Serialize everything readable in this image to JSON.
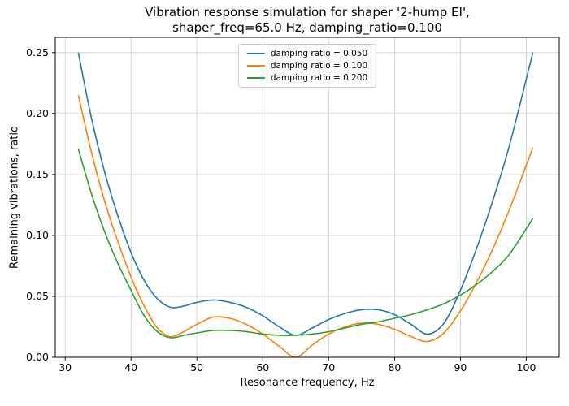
{
  "title": {
    "line1": "Vibration response simulation for shaper '2-hump EI',",
    "line2": "shaper_freq=65.0 Hz, damping_ratio=0.100"
  },
  "chart_data": {
    "type": "line",
    "title": "Vibration response simulation for shaper '2-hump EI',\nshaper_freq=65.0 Hz, damping_ratio=0.100",
    "xlabel": "Resonance frequency, Hz",
    "ylabel": "Remaining vibrations, ratio",
    "xlim": [
      28.5,
      105
    ],
    "ylim": [
      0,
      0.2625
    ],
    "xticks": [
      30,
      40,
      50,
      60,
      70,
      80,
      90,
      100
    ],
    "yticks": [
      0.0,
      0.05,
      0.1,
      0.15,
      0.2,
      0.25
    ],
    "grid": true,
    "legend_position": "upper center",
    "x": [
      32,
      34,
      36,
      38,
      40,
      42,
      44,
      46,
      48,
      50,
      52.5,
      55,
      57.5,
      60,
      62.5,
      65,
      67.5,
      70,
      72.5,
      75,
      77.5,
      80,
      82.5,
      85,
      87.5,
      90,
      92.5,
      95,
      97.5,
      101
    ],
    "series": [
      {
        "name": "damping ratio = 0.050",
        "color": "#1f77b4",
        "values": [
          0.25,
          0.196,
          0.152,
          0.116,
          0.086,
          0.063,
          0.048,
          0.041,
          0.042,
          0.045,
          0.047,
          0.045,
          0.041,
          0.034,
          0.025,
          0.018,
          0.024,
          0.031,
          0.036,
          0.039,
          0.039,
          0.035,
          0.027,
          0.019,
          0.028,
          0.055,
          0.09,
          0.13,
          0.175,
          0.25
        ]
      },
      {
        "name": "damping ratio = 0.100",
        "color": "#ff7f0e",
        "values": [
          0.215,
          0.168,
          0.128,
          0.095,
          0.066,
          0.042,
          0.024,
          0.017,
          0.021,
          0.027,
          0.033,
          0.032,
          0.027,
          0.019,
          0.009,
          0.0,
          0.01,
          0.019,
          0.025,
          0.028,
          0.027,
          0.023,
          0.017,
          0.013,
          0.02,
          0.038,
          0.062,
          0.09,
          0.122,
          0.172
        ]
      },
      {
        "name": "damping ratio = 0.200",
        "color": "#2ca02c",
        "values": [
          0.171,
          0.134,
          0.103,
          0.077,
          0.055,
          0.034,
          0.021,
          0.016,
          0.018,
          0.02,
          0.022,
          0.022,
          0.021,
          0.019,
          0.018,
          0.018,
          0.019,
          0.021,
          0.024,
          0.027,
          0.029,
          0.032,
          0.035,
          0.039,
          0.044,
          0.051,
          0.06,
          0.071,
          0.085,
          0.114
        ]
      }
    ]
  }
}
